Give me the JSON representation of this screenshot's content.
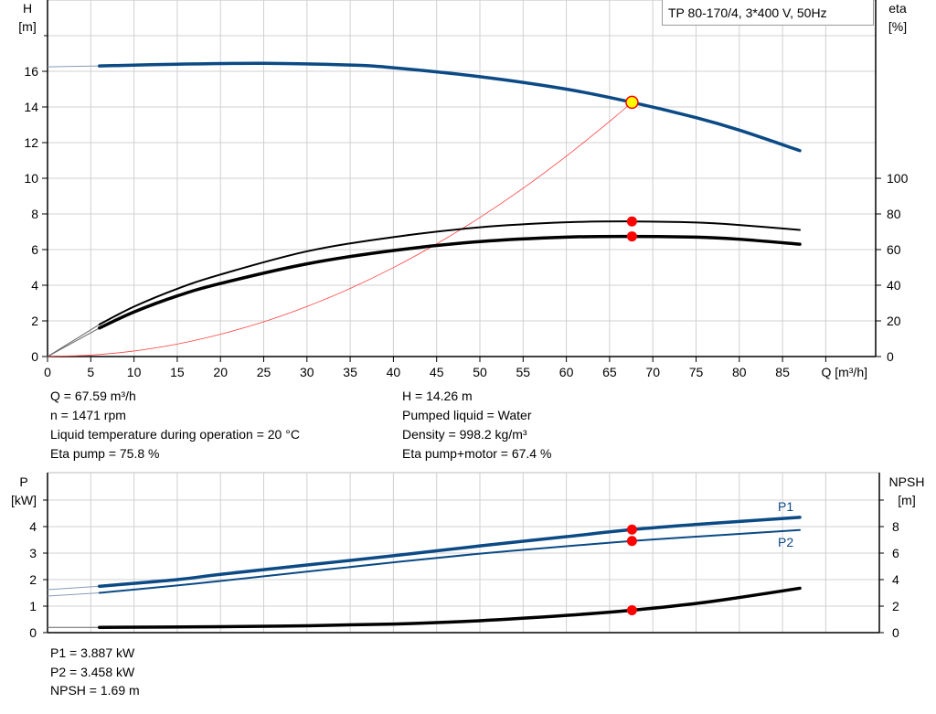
{
  "chart_data": [
    {
      "type": "line",
      "title": "TP 80-170/4, 3*400 V, 50Hz",
      "xlabel": "Q [m³/h]",
      "ylabel": "H\n[m]",
      "ylabel_right": "eta\n[%]",
      "xlim": [
        0,
        90
      ],
      "ylim": [
        0,
        20
      ],
      "ylim_right": [
        0,
        100
      ],
      "xticks": [
        0,
        5,
        10,
        15,
        20,
        25,
        30,
        35,
        40,
        45,
        50,
        55,
        60,
        65,
        70,
        75,
        80,
        85
      ],
      "yticks": [
        0,
        2,
        4,
        6,
        8,
        10,
        12,
        14,
        16
      ],
      "yticks_right": [
        0,
        20,
        40,
        60,
        80,
        100
      ],
      "grid": true,
      "series": [
        {
          "key": "H",
          "axis": "left",
          "color": "#0b4a85",
          "x": [
            0,
            6,
            15,
            25,
            35,
            40,
            50,
            60,
            67.59,
            75,
            80,
            87
          ],
          "y": [
            16.25,
            16.3,
            16.4,
            16.45,
            16.35,
            16.2,
            15.7,
            15.0,
            14.26,
            13.4,
            12.7,
            11.55
          ]
        },
        {
          "key": "eta_pump",
          "axis": "right",
          "color": "#000000",
          "x": [
            0,
            6,
            10,
            15,
            20,
            30,
            40,
            50,
            60,
            67.59,
            75,
            80,
            87
          ],
          "y": [
            0,
            18,
            28,
            38,
            46,
            59,
            67,
            72.5,
            75.3,
            75.8,
            75.2,
            73.8,
            71
          ]
        },
        {
          "key": "eta_pump_motor",
          "axis": "right",
          "color": "#000000",
          "x": [
            0,
            6,
            10,
            15,
            20,
            30,
            40,
            50,
            60,
            67.59,
            75,
            80,
            87
          ],
          "y": [
            0,
            16,
            25,
            34,
            41,
            52,
            59.5,
            64.5,
            67,
            67.4,
            67,
            65.8,
            63
          ]
        },
        {
          "key": "system_curve",
          "axis": "left",
          "color": "#ff4040",
          "x": [
            0,
            5,
            10,
            15,
            20,
            25,
            30,
            35,
            40,
            45,
            50,
            55,
            60,
            65,
            67.59
          ],
          "y": [
            0,
            0.08,
            0.31,
            0.7,
            1.25,
            1.95,
            2.81,
            3.82,
            4.99,
            6.32,
            7.8,
            9.44,
            11.24,
            13.19,
            14.26
          ]
        }
      ],
      "duty_point": {
        "Q": 67.59,
        "H": 14.26,
        "eta_pump": 75.8,
        "eta_pump_motor": 67.4
      }
    },
    {
      "type": "line",
      "ylabel": "P\n[kW]",
      "ylabel_right": "NPSH\n[m]",
      "xlim": [
        0,
        90
      ],
      "ylim": [
        0,
        6
      ],
      "ylim_right": [
        0,
        12
      ],
      "yticks": [
        0,
        1,
        2,
        3,
        4,
        5
      ],
      "ytick_labels": [
        "0",
        "1",
        "2",
        "3",
        "4",
        ""
      ],
      "yticks_right": [
        0,
        2,
        4,
        6,
        8,
        10
      ],
      "ytick_right_labels": [
        "0",
        "2",
        "4",
        "6",
        "8",
        ""
      ],
      "grid": true,
      "series": [
        {
          "name": "P1",
          "axis": "left",
          "color": "#0b4a85",
          "x": [
            0,
            6,
            15,
            20,
            30,
            40,
            50,
            60,
            67.59,
            75,
            87
          ],
          "y": [
            1.62,
            1.75,
            2.0,
            2.2,
            2.55,
            2.9,
            3.27,
            3.62,
            3.887,
            4.08,
            4.35
          ]
        },
        {
          "name": "P2",
          "axis": "left",
          "color": "#0b4a85",
          "x": [
            0,
            6,
            15,
            20,
            30,
            40,
            50,
            60,
            67.59,
            75,
            87
          ],
          "y": [
            1.38,
            1.5,
            1.78,
            1.95,
            2.3,
            2.65,
            2.98,
            3.26,
            3.458,
            3.62,
            3.87
          ]
        },
        {
          "key": "NPSH",
          "axis": "right",
          "color": "#000000",
          "x": [
            0,
            6,
            20,
            30,
            40,
            50,
            60,
            67.59,
            75,
            80,
            87
          ],
          "y": [
            0.4,
            0.4,
            0.45,
            0.52,
            0.65,
            0.9,
            1.3,
            1.69,
            2.2,
            2.65,
            3.35
          ]
        }
      ],
      "duty_point": {
        "Q": 67.59,
        "P1": 3.887,
        "P2": 3.458,
        "NPSH": 1.69
      }
    }
  ],
  "info_top_left": [
    "Q = 67.59 m³/h",
    "n = 1471 rpm",
    "Liquid temperature during operation = 20 °C",
    "Eta pump = 75.8 %"
  ],
  "info_top_right": [
    "H = 14.26 m",
    "Pumped liquid = Water",
    "Density = 998.2 kg/m³",
    "Eta pump+motor = 67.4 %"
  ],
  "info_bottom": [
    "P1 = 3.887 kW",
    "P2 = 3.458 kW",
    "NPSH = 1.69 m"
  ],
  "colors": {
    "curve_blue": "#0b4a85",
    "duty_point": "#ff0000",
    "duty_point_fill": "#ffff00",
    "grid": "#d0d0d0"
  }
}
